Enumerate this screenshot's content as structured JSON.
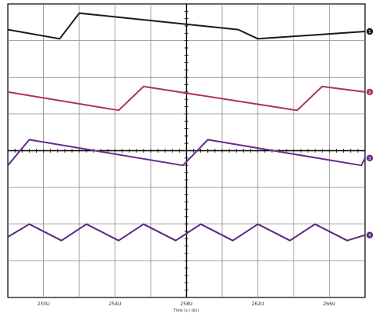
{
  "chart_data": {
    "type": "line",
    "title": "",
    "xlabel": "Time (s / div)",
    "ylabel": "",
    "grid": true,
    "x_divisions": 10,
    "y_divisions": 8,
    "x_tick_labels": [
      "250U",
      "254U",
      "258U",
      "262U",
      "266U"
    ],
    "x_tick_divisions": [
      1,
      3,
      5,
      7,
      9
    ],
    "series": [
      {
        "color": "#1a1a1a",
        "marker_label": "1",
        "x": [
          0,
          1.45,
          2.0,
          6.45,
          7.0,
          10.0
        ],
        "y": [
          7.3,
          7.05,
          7.75,
          7.3,
          7.05,
          7.25
        ]
      },
      {
        "color": "#b0306a",
        "marker_label": "2",
        "x": [
          0,
          3.1,
          3.8,
          8.1,
          8.8,
          10.0
        ],
        "y": [
          5.6,
          5.1,
          5.75,
          5.1,
          5.75,
          5.6
        ]
      },
      {
        "color": "#6a2a8a",
        "marker_label": "3",
        "x": [
          0,
          0.6,
          4.9,
          5.6,
          9.9,
          10.0
        ],
        "y": [
          3.6,
          4.3,
          3.6,
          4.3,
          3.6,
          3.8
        ]
      },
      {
        "color": "#5a2a80",
        "marker_label": "4",
        "x": [
          0,
          0.6,
          1.5,
          2.2,
          3.1,
          3.8,
          4.7,
          5.4,
          6.3,
          7.0,
          7.9,
          8.6,
          9.5,
          10.0
        ],
        "y": [
          1.65,
          2.0,
          1.55,
          2.0,
          1.55,
          2.0,
          1.55,
          2.0,
          1.55,
          2.0,
          1.55,
          2.0,
          1.55,
          1.7
        ]
      }
    ]
  }
}
